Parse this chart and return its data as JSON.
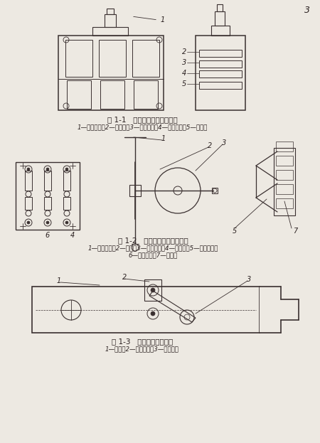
{
  "bg_color": "#ede9e2",
  "page_number": "3",
  "fig1_title": "图 1-1   三极直接操作刀型开关",
  "fig1_caption": "1—操作手柄；2—弹簧座；3—起端底板；4—灭弧刀片；5—刀舌。",
  "fig2_title": "图 1-2   三极杠杆操作刀型开关",
  "fig2_caption_line1": "1—操作手柄；2—摆杆；3—传动机构；4—静插座；5—灭弧刀片；",
  "fig2_caption_line2": "6—起端底板；7—刀舌。",
  "fig3_title": "图 1-3   带有灭弧刀的刀舌",
  "fig3_caption": "1—刀舌；2—压力插簧；3—灭弧刀。",
  "lc": "#3a3030",
  "tc": "#2a2020"
}
